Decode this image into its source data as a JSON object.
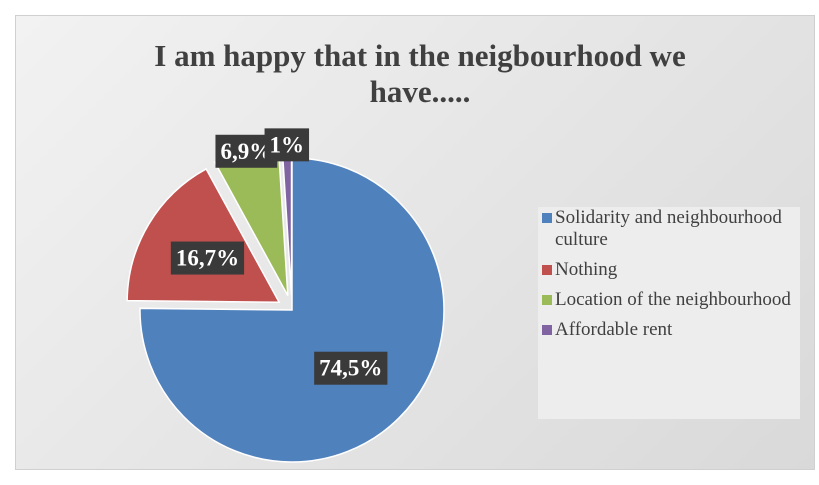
{
  "chart_data": {
    "type": "pie",
    "title": "I am happy that in the neigbourhood we have.....",
    "categories": [
      "Solidarity and neighbourhood culture",
      "Nothing",
      "Location of the neighbourhood",
      "Affordable rent"
    ],
    "values": [
      74.5,
      16.7,
      6.9,
      1
    ],
    "value_labels": [
      "74,5%",
      "16,7%",
      "6,9%",
      "1%"
    ],
    "colors": [
      "#4f81bd",
      "#c0504d",
      "#9bbb59",
      "#8064a2"
    ],
    "legend": "right"
  }
}
